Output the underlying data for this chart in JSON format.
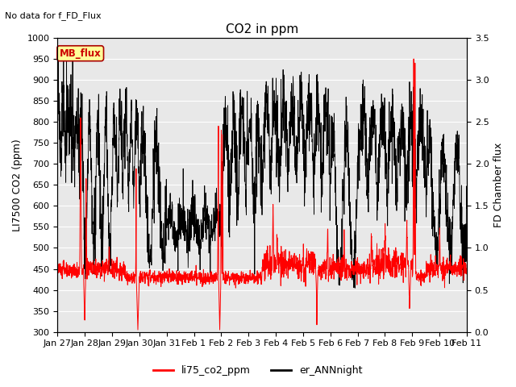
{
  "title": "CO2 in ppm",
  "top_left_text": "No data for f_FD_Flux",
  "ylabel_left": "LI7500 CO2 (ppm)",
  "ylabel_right": "FD Chamber flux",
  "ylim_left": [
    300,
    1000
  ],
  "ylim_right": [
    0.0,
    3.5
  ],
  "yticks_left": [
    300,
    350,
    400,
    450,
    500,
    550,
    600,
    650,
    700,
    750,
    800,
    850,
    900,
    950,
    1000
  ],
  "yticks_right": [
    0.0,
    0.5,
    1.0,
    1.5,
    2.0,
    2.5,
    3.0,
    3.5
  ],
  "xtick_labels": [
    "Jan 27",
    "Jan 28",
    "Jan 29",
    "Jan 30",
    "Jan 31",
    "Feb 1",
    "Feb 2",
    "Feb 3",
    "Feb 4",
    "Feb 5",
    "Feb 6",
    "Feb 7",
    "Feb 8",
    "Feb 9",
    "Feb 10",
    "Feb 11"
  ],
  "legend_entries": [
    "li75_co2_ppm",
    "er_ANNnight"
  ],
  "legend_colors": [
    "red",
    "black"
  ],
  "line_color_red": "#ff0000",
  "line_color_black": "#000000",
  "plot_bg_color": "#e8e8e8",
  "mb_flux_label": "MB_flux",
  "mb_flux_bg": "#ffff99",
  "mb_flux_border": "#aa0000",
  "title_fontsize": 11,
  "axis_fontsize": 9,
  "tick_fontsize": 8,
  "legend_fontsize": 9
}
